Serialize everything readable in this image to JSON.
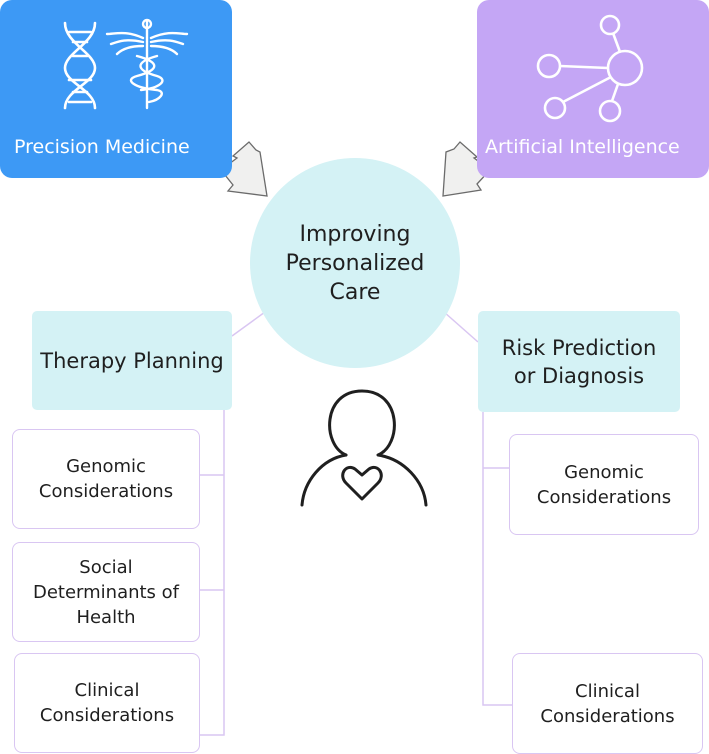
{
  "inputs": {
    "precision_medicine": {
      "label": "Precision Medicine",
      "icons": [
        "dna-icon",
        "caduceus-icon"
      ],
      "color": "#3d99f5"
    },
    "artificial_intelligence": {
      "label": "Artificial Intelligence",
      "icons": [
        "network-icon"
      ],
      "color": "#c4a6f5"
    }
  },
  "center": {
    "line1": "Improving",
    "line2": "Personalized",
    "line3": "Care",
    "color": "#d4f2f5"
  },
  "left_branch": {
    "title": "Therapy Planning",
    "items": [
      {
        "line1": "Genomic",
        "line2": "Considerations"
      },
      {
        "line1": "Social",
        "line2": "Determinants of",
        "line3": "Health"
      },
      {
        "line1": "Clinical",
        "line2": "Considerations"
      }
    ]
  },
  "right_branch": {
    "title_line1": "Risk Prediction",
    "title_line2": "or Diagnosis",
    "items": [
      {
        "line1": "Genomic",
        "line2": "Considerations"
      },
      {
        "line1": "Clinical",
        "line2": "Considerations"
      }
    ]
  },
  "patient_icon": "patient-heart-icon"
}
